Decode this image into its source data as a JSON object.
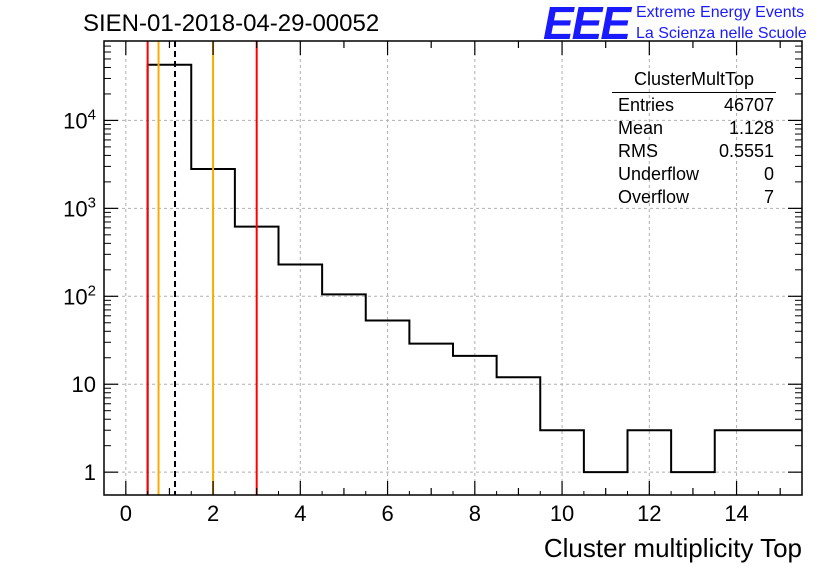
{
  "title": "SIEN-01-2018-04-29-00052",
  "logo": {
    "mark": "EEE",
    "line1": "Extreme Energy Events",
    "line2": "La Scienza nelle Scuole",
    "color": "#1a1aff"
  },
  "stats": {
    "name": "ClusterMultTop",
    "rows": [
      {
        "label": "Entries",
        "value": "46707"
      },
      {
        "label": "Mean",
        "value": "1.128"
      },
      {
        "label": "RMS",
        "value": "0.5551"
      },
      {
        "label": "Underflow",
        "value": "0"
      },
      {
        "label": "Overflow",
        "value": "7"
      }
    ]
  },
  "chart_data": {
    "type": "histogram",
    "title": "SIEN-01-2018-04-29-00052",
    "xlabel": "Cluster multiplicity Top",
    "ylabel": "",
    "yscale": "log",
    "xlim": [
      -0.5,
      15.5
    ],
    "ylim": [
      0.55,
      80000
    ],
    "grid": true,
    "x_ticks": [
      0,
      2,
      4,
      6,
      8,
      10,
      12,
      14
    ],
    "x_tick_labels": [
      "0",
      "2",
      "4",
      "6",
      "8",
      "10",
      "12",
      "14"
    ],
    "y_ticks": [
      1,
      10,
      100,
      1000,
      10000
    ],
    "y_tick_labels": [
      "1",
      "10",
      "10^2",
      "10^3",
      "10^4"
    ],
    "bin_edges": [
      0.5,
      1.5,
      2.5,
      3.5,
      4.5,
      5.5,
      6.5,
      7.5,
      8.5,
      9.5,
      10.5,
      11.5,
      12.5,
      13.5,
      14.5,
      15.5
    ],
    "counts": [
      43000,
      2800,
      620,
      230,
      105,
      53,
      29,
      21,
      12,
      3,
      1,
      3,
      1,
      3,
      3
    ],
    "vertical_lines": [
      {
        "x": 0.5,
        "color": "#ff0000",
        "style": "solid"
      },
      {
        "x": 0.75,
        "color": "#ffaa00",
        "style": "solid"
      },
      {
        "x": 1.128,
        "color": "#000000",
        "style": "dashed"
      },
      {
        "x": 2.0,
        "color": "#ffaa00",
        "style": "solid"
      },
      {
        "x": 3.0,
        "color": "#ff0000",
        "style": "solid"
      }
    ]
  }
}
